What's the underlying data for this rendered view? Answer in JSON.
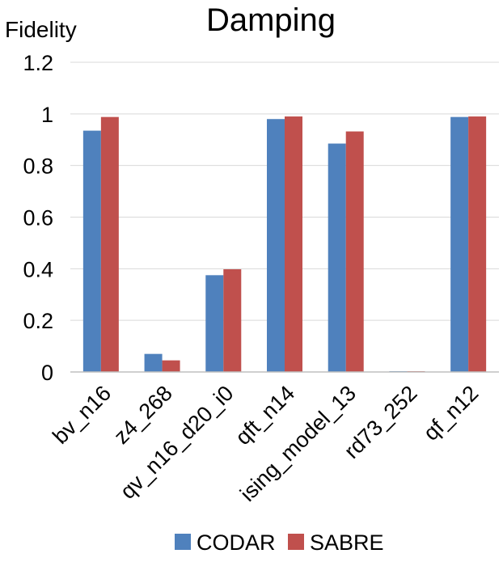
{
  "chart_data": {
    "type": "bar",
    "title": "Damping",
    "ylabel": "Fidelity",
    "xlabel": "",
    "ylim": [
      0,
      1.2
    ],
    "yticks": [
      0,
      0.2,
      0.4,
      0.6,
      0.8,
      1,
      1.2
    ],
    "ytick_labels": [
      "0",
      "0.2",
      "0.4",
      "0.6",
      "0.8",
      "1",
      "1.2"
    ],
    "grid": true,
    "legend": "bottom",
    "categories": [
      "bv_n16",
      "z4_268",
      "qv_n16_d20_i0",
      "qft_n14",
      "ising_model_13",
      "rd73_252",
      "qf_n12"
    ],
    "series": [
      {
        "name": "CODAR",
        "color": "#4F81BD",
        "values": [
          0.935,
          0.07,
          0.375,
          0.98,
          0.885,
          0.003,
          0.988
        ]
      },
      {
        "name": "SABRE",
        "color": "#C0504D",
        "values": [
          0.988,
          0.045,
          0.398,
          0.99,
          0.932,
          0.003,
          0.99
        ]
      }
    ]
  }
}
